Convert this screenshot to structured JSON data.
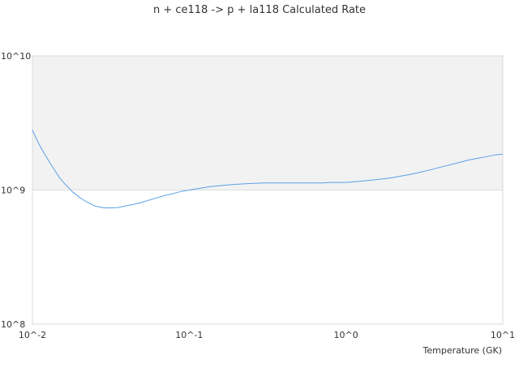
{
  "chart_data": {
    "type": "line",
    "title": "n + ce118 -> p + la118 Calculated Rate",
    "xlabel": "Temperature (GK)",
    "ylabel": "",
    "xscale": "log",
    "yscale": "log",
    "xlim": [
      0.01,
      10
    ],
    "ylim": [
      100000000,
      10000000000
    ],
    "x_ticks": [
      "10^-2",
      "10^-1",
      "10^0",
      "10^1"
    ],
    "y_ticks": [
      "10^8",
      "10^9",
      "10^10"
    ],
    "legend": "none",
    "series": [
      {
        "color": "#5aa0e6",
        "x": [
          0.01,
          0.011,
          0.012,
          0.013,
          0.014,
          0.015,
          0.016,
          0.018,
          0.02,
          0.022,
          0.025,
          0.028,
          0.03,
          0.035,
          0.04,
          0.045,
          0.05,
          0.06,
          0.07,
          0.08,
          0.09,
          0.1,
          0.12,
          0.14,
          0.16,
          0.18,
          0.2,
          0.25,
          0.3,
          0.35,
          0.4,
          0.5,
          0.6,
          0.7,
          0.8,
          0.9,
          1.0,
          1.2,
          1.5,
          1.8,
          2.0,
          2.5,
          3.0,
          3.5,
          4.0,
          5.0,
          6.0,
          7.0,
          8.0,
          9.0,
          10.0
        ],
        "y": [
          2800000000,
          2200000000,
          1840000000,
          1580000000,
          1380000000,
          1220000000,
          1120000000,
          970000000,
          880000000,
          820000000,
          760000000,
          740000000,
          735000000,
          740000000,
          765000000,
          785000000,
          810000000,
          865000000,
          910000000,
          945000000,
          980000000,
          1000000000,
          1035000000,
          1065000000,
          1080000000,
          1095000000,
          1105000000,
          1120000000,
          1130000000,
          1130000000,
          1130000000,
          1130000000,
          1130000000,
          1130000000,
          1140000000,
          1140000000,
          1140000000,
          1160000000,
          1190000000,
          1220000000,
          1240000000,
          1300000000,
          1360000000,
          1420000000,
          1480000000,
          1580000000,
          1670000000,
          1730000000,
          1780000000,
          1830000000,
          1850000000
        ]
      }
    ]
  },
  "colors": {
    "upper_band": "#f2f2f2",
    "gridline": "#dddddd",
    "frame": "#d9d9d9",
    "line": "#5aa0e6"
  }
}
